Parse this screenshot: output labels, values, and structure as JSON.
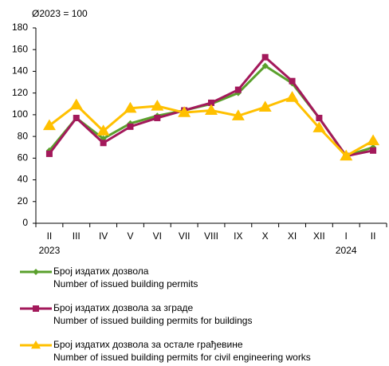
{
  "chart_data": {
    "type": "line",
    "axis_label": "Ø2023 = 100",
    "categories": [
      "II",
      "III",
      "IV",
      "V",
      "VI",
      "VII",
      "VIII",
      "IX",
      "X",
      "XI",
      "XII",
      "I",
      "II"
    ],
    "years": [
      "2023",
      null,
      null,
      null,
      null,
      null,
      null,
      null,
      null,
      null,
      null,
      "2024",
      null
    ],
    "ylim": [
      0,
      180
    ],
    "yticks": [
      0,
      20,
      40,
      60,
      80,
      100,
      120,
      140,
      160,
      180
    ],
    "grid": false,
    "series": [
      {
        "name": "Број издатих дозвола",
        "name_en": "Number  of  issued building permits",
        "color": "#5aa02c",
        "marker": "diamond",
        "values": [
          67,
          97,
          78,
          92,
          99,
          104,
          110,
          120,
          145,
          129,
          97,
          62,
          70
        ]
      },
      {
        "name": "Број издатих дозвола за зграде",
        "name_en": "Number  of  issued building permits for buildings",
        "color": "#a3195b",
        "marker": "square",
        "values": [
          64,
          97,
          74,
          89,
          97,
          104,
          111,
          123,
          153,
          131,
          97,
          62,
          67
        ]
      },
      {
        "name": "Број издатих дозвола за остале грађевине",
        "name_en": "Number  of  issued building permits for civil engineering works",
        "color": "#ffc000",
        "marker": "triangle",
        "values": [
          90,
          109,
          85,
          106,
          108,
          102,
          104,
          99,
          107,
          116,
          88,
          62,
          76
        ]
      }
    ]
  }
}
